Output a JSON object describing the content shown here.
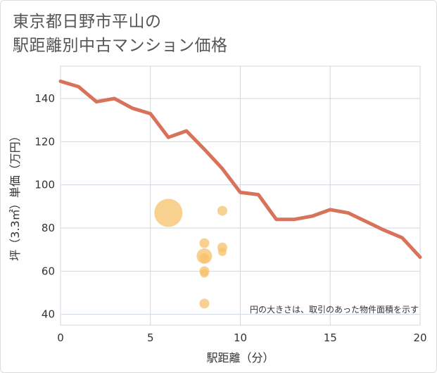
{
  "chart_data": {
    "type": "scatter",
    "title": "東京都日野市平山の\n駅距離別中古マンション価格",
    "xlabel": "駅距離（分）",
    "ylabel": "坪（3.3㎡）単価（万円）",
    "xlim": [
      0,
      20
    ],
    "ylim": [
      35,
      155
    ],
    "x_ticks": [
      0,
      5,
      10,
      15,
      20
    ],
    "y_ticks": [
      40,
      60,
      80,
      100,
      120,
      140
    ],
    "grid": true,
    "note": "円の大きさは、取引のあった物件面積を示す",
    "line_series": {
      "x": [
        0,
        1,
        2,
        3,
        4,
        5,
        6,
        7,
        8,
        9,
        10,
        11,
        12,
        13,
        14,
        15,
        16,
        17,
        18,
        19,
        20
      ],
      "y": [
        148,
        145.5,
        138.5,
        140,
        135.5,
        133,
        122,
        125,
        116.5,
        107.5,
        96.5,
        95.5,
        84,
        84,
        85.5,
        88.5,
        87,
        83,
        79,
        75.5,
        66.5
      ],
      "color": "#d9725a"
    },
    "bubble_series": {
      "color": "#f5c26b",
      "points": [
        {
          "x": 6,
          "y": 87,
          "size": 20
        },
        {
          "x": 8,
          "y": 73,
          "size": 7
        },
        {
          "x": 8,
          "y": 67,
          "size": 11
        },
        {
          "x": 8,
          "y": 66,
          "size": 7
        },
        {
          "x": 8,
          "y": 60,
          "size": 7
        },
        {
          "x": 8,
          "y": 59,
          "size": 6
        },
        {
          "x": 8,
          "y": 45,
          "size": 7
        },
        {
          "x": 9,
          "y": 88,
          "size": 7
        },
        {
          "x": 9,
          "y": 71,
          "size": 7
        },
        {
          "x": 9,
          "y": 69,
          "size": 6
        }
      ]
    }
  }
}
